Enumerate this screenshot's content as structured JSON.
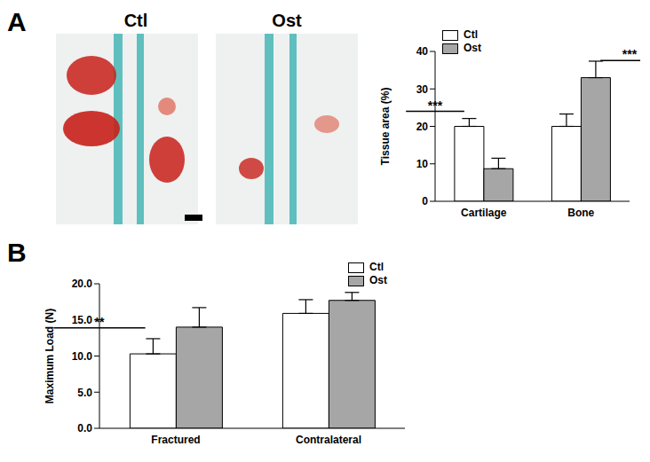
{
  "image_labels": [
    "Ctl",
    "Ost"
  ],
  "chart_data": [
    {
      "panel": "A",
      "type": "bar",
      "categories": [
        "Cartilage",
        "Bone"
      ],
      "series": [
        {
          "name": "Ctl",
          "color": "#ffffff",
          "values": [
            20.0,
            20.0
          ],
          "errors": [
            2.1,
            3.3
          ]
        },
        {
          "name": "Ost",
          "color": "#a6a6a6",
          "values": [
            8.7,
            33.0
          ],
          "errors": [
            2.8,
            4.4
          ]
        }
      ],
      "y_label": "Tissue area (%)",
      "ylim": [
        0,
        40
      ],
      "yticks": [
        0,
        10,
        20,
        30,
        40
      ],
      "legend": "upper left",
      "annotations": [
        {
          "text": "***",
          "category": "Cartilage",
          "y": 24.0
        },
        {
          "text": "***",
          "category": "Bone",
          "y": 37.6
        }
      ]
    },
    {
      "panel": "B",
      "type": "bar",
      "categories": [
        "Fractured",
        "Contralateral"
      ],
      "series": [
        {
          "name": "Ctl",
          "color": "#ffffff",
          "values": [
            10.3,
            15.9
          ],
          "errors": [
            2.1,
            1.9
          ]
        },
        {
          "name": "Ost",
          "color": "#a6a6a6",
          "values": [
            14.0,
            17.7
          ],
          "errors": [
            2.7,
            1.1
          ]
        }
      ],
      "y_label": "Maximum Load (N)",
      "ylim": [
        0,
        20
      ],
      "yticks": [
        {
          "value": 0,
          "label": "0.0"
        },
        {
          "value": 5,
          "label": "5.0"
        },
        {
          "value": 10,
          "label": "10.0"
        },
        {
          "value": 15,
          "label": "15.0"
        },
        {
          "value": 20,
          "label": "20.0"
        }
      ],
      "legend": "upper right",
      "annotations": [
        {
          "text": "**",
          "category": "Fractured",
          "y": 13.9
        }
      ]
    }
  ]
}
